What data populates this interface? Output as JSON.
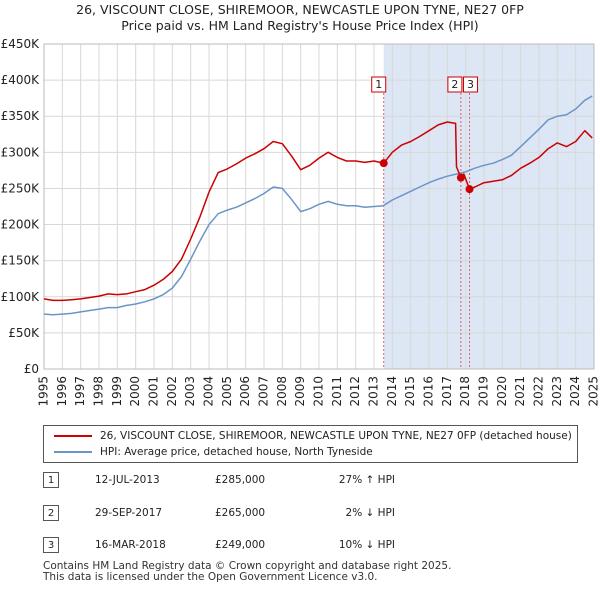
{
  "title_line1": "26, VISCOUNT CLOSE, SHIREMOOR, NEWCASTLE UPON TYNE, NE27 0FP",
  "title_line2": "Price paid vs. HM Land Registry's House Price Index (HPI)",
  "colors": {
    "property": "#cc0000",
    "hpi": "#6a95c9",
    "shade": "#dde6f4",
    "grid": "#d8d8d8",
    "vline": "#e06060"
  },
  "chart_data": {
    "type": "line",
    "ylim": [
      0,
      450000
    ],
    "xlim": [
      1995.0,
      2025.0
    ],
    "y_ticks": [
      {
        "v": 0,
        "label": "£0"
      },
      {
        "v": 50000,
        "label": "£50K"
      },
      {
        "v": 100000,
        "label": "£100K"
      },
      {
        "v": 150000,
        "label": "£150K"
      },
      {
        "v": 200000,
        "label": "£200K"
      },
      {
        "v": 250000,
        "label": "£250K"
      },
      {
        "v": 300000,
        "label": "£300K"
      },
      {
        "v": 350000,
        "label": "£350K"
      },
      {
        "v": 400000,
        "label": "£400K"
      },
      {
        "v": 450000,
        "label": "£450K"
      }
    ],
    "x_ticks": [
      "1995",
      "1996",
      "1997",
      "1998",
      "1999",
      "2000",
      "2001",
      "2002",
      "2003",
      "2004",
      "2005",
      "2006",
      "2007",
      "2008",
      "2009",
      "2010",
      "2011",
      "2012",
      "2013",
      "2014",
      "2015",
      "2016",
      "2017",
      "2018",
      "2019",
      "2020",
      "2021",
      "2022",
      "2023",
      "2024",
      "2025"
    ],
    "series": [
      {
        "name": "26, VISCOUNT CLOSE, SHIREMOOR, NEWCASTLE UPON TYNE, NE27 0FP (detached house)",
        "color": "#cc0000",
        "points": [
          [
            1995.0,
            97000
          ],
          [
            1995.5,
            95000
          ],
          [
            1996.0,
            95000
          ],
          [
            1996.5,
            96000
          ],
          [
            1997.0,
            97000
          ],
          [
            1997.5,
            99000
          ],
          [
            1998.0,
            101000
          ],
          [
            1998.5,
            104000
          ],
          [
            1999.0,
            103000
          ],
          [
            1999.5,
            104000
          ],
          [
            2000.0,
            107000
          ],
          [
            2000.5,
            110000
          ],
          [
            2001.0,
            116000
          ],
          [
            2001.5,
            124000
          ],
          [
            2002.0,
            135000
          ],
          [
            2002.5,
            152000
          ],
          [
            2003.0,
            180000
          ],
          [
            2003.5,
            210000
          ],
          [
            2004.0,
            245000
          ],
          [
            2004.5,
            272000
          ],
          [
            2005.0,
            277000
          ],
          [
            2005.5,
            284000
          ],
          [
            2006.0,
            292000
          ],
          [
            2006.5,
            298000
          ],
          [
            2007.0,
            305000
          ],
          [
            2007.5,
            315000
          ],
          [
            2008.0,
            312000
          ],
          [
            2008.5,
            295000
          ],
          [
            2009.0,
            276000
          ],
          [
            2009.5,
            282000
          ],
          [
            2010.0,
            292000
          ],
          [
            2010.5,
            300000
          ],
          [
            2011.0,
            293000
          ],
          [
            2011.5,
            288000
          ],
          [
            2012.0,
            288000
          ],
          [
            2012.5,
            286000
          ],
          [
            2013.0,
            288000
          ],
          [
            2013.53,
            285000
          ],
          [
            2014.0,
            300000
          ],
          [
            2014.5,
            310000
          ],
          [
            2015.0,
            315000
          ],
          [
            2015.5,
            322000
          ],
          [
            2016.0,
            330000
          ],
          [
            2016.5,
            338000
          ],
          [
            2017.0,
            342000
          ],
          [
            2017.45,
            340000
          ],
          [
            2017.5,
            280000
          ],
          [
            2017.74,
            265000
          ],
          [
            2017.9,
            270000
          ],
          [
            2018.21,
            249000
          ],
          [
            2018.5,
            252000
          ],
          [
            2019.0,
            258000
          ],
          [
            2019.5,
            260000
          ],
          [
            2020.0,
            262000
          ],
          [
            2020.5,
            268000
          ],
          [
            2021.0,
            278000
          ],
          [
            2021.5,
            285000
          ],
          [
            2022.0,
            293000
          ],
          [
            2022.5,
            305000
          ],
          [
            2023.0,
            313000
          ],
          [
            2023.5,
            308000
          ],
          [
            2024.0,
            315000
          ],
          [
            2024.5,
            330000
          ],
          [
            2024.9,
            320000
          ]
        ]
      },
      {
        "name": "HPI: Average price, detached house, North Tyneside",
        "color": "#6a95c9",
        "points": [
          [
            1995.0,
            76000
          ],
          [
            1995.5,
            75000
          ],
          [
            1996.0,
            76000
          ],
          [
            1996.5,
            77000
          ],
          [
            1997.0,
            79000
          ],
          [
            1997.5,
            81000
          ],
          [
            1998.0,
            83000
          ],
          [
            1998.5,
            85000
          ],
          [
            1999.0,
            85000
          ],
          [
            1999.5,
            88000
          ],
          [
            2000.0,
            90000
          ],
          [
            2000.5,
            93000
          ],
          [
            2001.0,
            97000
          ],
          [
            2001.5,
            103000
          ],
          [
            2002.0,
            112000
          ],
          [
            2002.5,
            128000
          ],
          [
            2003.0,
            152000
          ],
          [
            2003.5,
            177000
          ],
          [
            2004.0,
            200000
          ],
          [
            2004.5,
            215000
          ],
          [
            2005.0,
            220000
          ],
          [
            2005.5,
            224000
          ],
          [
            2006.0,
            230000
          ],
          [
            2006.5,
            236000
          ],
          [
            2007.0,
            243000
          ],
          [
            2007.5,
            252000
          ],
          [
            2008.0,
            250000
          ],
          [
            2008.5,
            235000
          ],
          [
            2009.0,
            218000
          ],
          [
            2009.5,
            222000
          ],
          [
            2010.0,
            228000
          ],
          [
            2010.5,
            232000
          ],
          [
            2011.0,
            228000
          ],
          [
            2011.5,
            226000
          ],
          [
            2012.0,
            226000
          ],
          [
            2012.5,
            224000
          ],
          [
            2013.0,
            225000
          ],
          [
            2013.5,
            226000
          ],
          [
            2014.0,
            234000
          ],
          [
            2014.5,
            240000
          ],
          [
            2015.0,
            246000
          ],
          [
            2015.5,
            252000
          ],
          [
            2016.0,
            258000
          ],
          [
            2016.5,
            263000
          ],
          [
            2017.0,
            267000
          ],
          [
            2017.5,
            270000
          ],
          [
            2018.0,
            273000
          ],
          [
            2018.5,
            278000
          ],
          [
            2019.0,
            282000
          ],
          [
            2019.5,
            285000
          ],
          [
            2020.0,
            290000
          ],
          [
            2020.5,
            296000
          ],
          [
            2021.0,
            308000
          ],
          [
            2021.5,
            320000
          ],
          [
            2022.0,
            332000
          ],
          [
            2022.5,
            345000
          ],
          [
            2023.0,
            350000
          ],
          [
            2023.5,
            352000
          ],
          [
            2024.0,
            360000
          ],
          [
            2024.5,
            372000
          ],
          [
            2024.9,
            378000
          ]
        ]
      }
    ],
    "shaded_region": [
      2013.53,
      2025.0
    ],
    "transactions": [
      {
        "id": "1",
        "x": 2013.53,
        "y": 285000,
        "date": "12-JUL-2013",
        "price": "£285,000",
        "hpi": "27% ↑ HPI"
      },
      {
        "id": "2",
        "x": 2017.74,
        "y": 265000,
        "date": "29-SEP-2017",
        "price": "£265,000",
        "hpi": "2% ↓ HPI"
      },
      {
        "id": "3",
        "x": 2018.21,
        "y": 249000,
        "date": "16-MAR-2018",
        "price": "£249,000",
        "hpi": "10% ↓ HPI"
      }
    ]
  },
  "legend": {
    "property_label": "26, VISCOUNT CLOSE, SHIREMOOR, NEWCASTLE UPON TYNE, NE27 0FP (detached house)",
    "hpi_label": "HPI: Average price, detached house, North Tyneside"
  },
  "footer": {
    "line1": "Contains HM Land Registry data © Crown copyright and database right 2025.",
    "line2": "This data is licensed under the Open Government Licence v3.0."
  }
}
